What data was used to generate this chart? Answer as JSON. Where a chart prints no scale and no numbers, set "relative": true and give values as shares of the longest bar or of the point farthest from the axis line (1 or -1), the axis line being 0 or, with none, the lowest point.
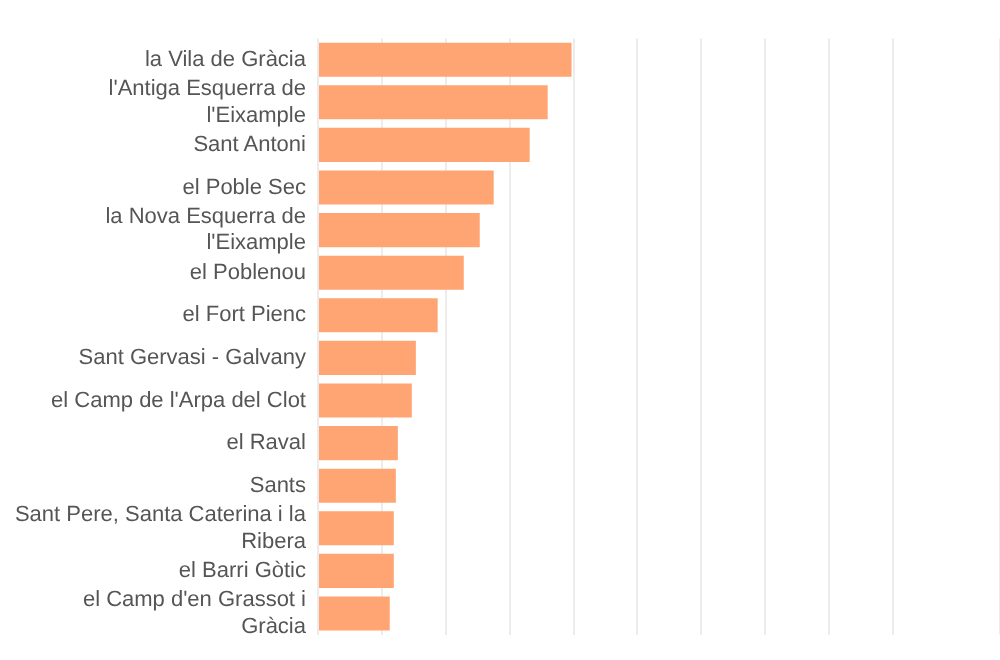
{
  "chart_data": {
    "type": "bar",
    "orientation": "horizontal",
    "relative": true,
    "grid": "x",
    "categories": [
      "la Vila de Gràcia",
      "l'Antiga Esquerra de l'Eixample",
      "Sant Antoni",
      "el Poble Sec",
      "la Nova Esquerra de l'Eixample",
      "el Poblenou",
      "el Fort Pienc",
      "Sant Gervasi - Galvany",
      "el Camp de l'Arpa del Clot",
      "el Raval",
      "Sants",
      "Sant Pere, Santa Caterina i la Ribera",
      "el Barri Gòtic",
      "el Camp d'en Grassot i Gràcia"
    ],
    "values": [
      1,
      0.906,
      0.835,
      0.693,
      0.638,
      0.575,
      0.472,
      0.386,
      0.37,
      0.315,
      0.307,
      0.299,
      0.299,
      0.283
    ],
    "color": "#ffa574"
  }
}
